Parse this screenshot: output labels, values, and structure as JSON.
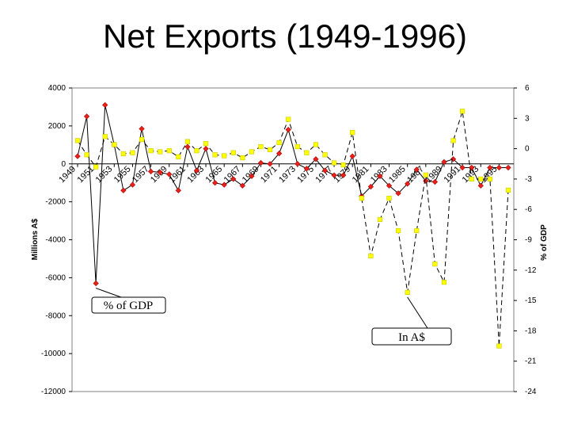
{
  "slide": {
    "title": "Net Exports (1949-1996)"
  },
  "chart_data": {
    "type": "line",
    "title": "Net Exports (1949-1996)",
    "x": [
      1949,
      1950,
      1951,
      1952,
      1953,
      1954,
      1955,
      1956,
      1957,
      1958,
      1959,
      1960,
      1961,
      1962,
      1963,
      1964,
      1965,
      1966,
      1967,
      1968,
      1969,
      1970,
      1971,
      1972,
      1973,
      1974,
      1975,
      1976,
      1977,
      1978,
      1979,
      1980,
      1981,
      1982,
      1983,
      1984,
      1985,
      1986,
      1987,
      1988,
      1989,
      1990,
      1991,
      1992,
      1993,
      1994,
      1995,
      1996
    ],
    "x_tick_labels": [
      "1949",
      "1951",
      "1953",
      "1955",
      "1957",
      "1959",
      "1961",
      "1963",
      "1965",
      "1967",
      "1969",
      "1971",
      "1973",
      "1975",
      "1977",
      "1979",
      "1981",
      "1983",
      "1985",
      "1987",
      "1989",
      "1991",
      "1993",
      "1995"
    ],
    "x_tick_years": [
      1949,
      1951,
      1953,
      1955,
      1957,
      1959,
      1961,
      1963,
      1965,
      1967,
      1969,
      1971,
      1973,
      1975,
      1977,
      1979,
      1981,
      1983,
      1985,
      1987,
      1989,
      1991,
      1993,
      1995
    ],
    "ylabel": "Millions A$",
    "ylabel_right": "% of GDP",
    "ylim": [
      -12000,
      4000
    ],
    "yticks": [
      4000,
      2000,
      0,
      -2000,
      -4000,
      -6000,
      -8000,
      -10000,
      -12000
    ],
    "ylim_right": [
      -24,
      6
    ],
    "yticks_right": [
      6,
      3,
      0,
      -3,
      -6,
      -9,
      -12,
      -15,
      -18,
      -21,
      -24
    ],
    "series": [
      {
        "name": "In A$",
        "axis": "left",
        "color": "#e8211a",
        "marker": "diamond",
        "values": [
          400,
          2500,
          -6300,
          3100,
          1000,
          -1400,
          -1100,
          1850,
          -400,
          -450,
          -550,
          -1400,
          900,
          -350,
          800,
          -1000,
          -1100,
          -800,
          -1150,
          -650,
          50,
          0,
          550,
          1800,
          0,
          -250,
          250,
          -350,
          -600,
          -600,
          400,
          -1700,
          -1200,
          -650,
          -1150,
          -1550,
          -1050,
          -300,
          -900,
          -950,
          100,
          250,
          -200,
          -200,
          -1150,
          -200,
          -200,
          -200
        ]
      },
      {
        "name": "% of GDP",
        "axis": "right",
        "color": "#ffff00",
        "marker": "square",
        "values": [
          0.8,
          -0.6,
          -1.8,
          1.2,
          0.4,
          -0.5,
          -0.4,
          0.9,
          -0.2,
          -0.3,
          -0.2,
          -0.8,
          0.7,
          -0.2,
          0.5,
          -0.6,
          -0.7,
          -0.4,
          -0.9,
          -0.3,
          0.2,
          -0.1,
          0.6,
          2.9,
          0.2,
          -0.4,
          0.4,
          -0.6,
          -1.4,
          -1.6,
          1.6,
          -4.9,
          -10.6,
          -7.0,
          -4.9,
          -8.1,
          -14.2,
          -8.1,
          -2.6,
          -11.4,
          -13.2,
          0.8,
          3.7,
          -3.0,
          -3.0,
          -3.0,
          -19.5,
          -4.1
        ]
      }
    ],
    "annotations": [
      {
        "text": "% of GDP",
        "points_to": "% of GDP series at 1951"
      },
      {
        "text": "In A$",
        "points_to": "In A$ series at 1985"
      }
    ],
    "grid": false,
    "legend": "none"
  }
}
